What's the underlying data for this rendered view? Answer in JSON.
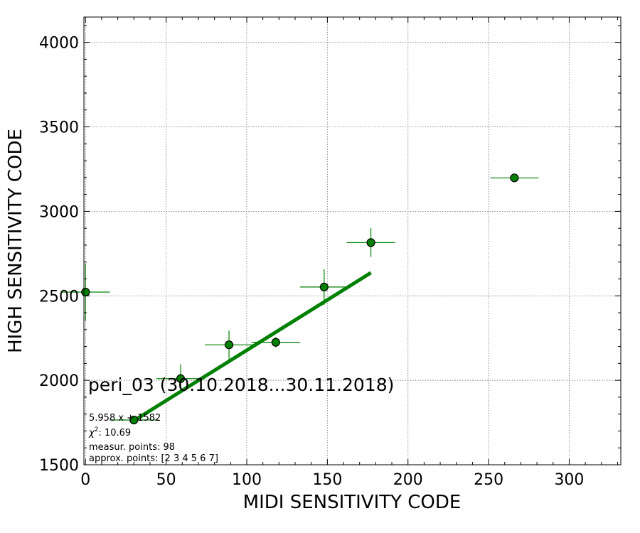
{
  "chart_data": {
    "type": "scatter",
    "xlabel": "MIDI SENSITIVITY CODE",
    "ylabel": "HIGH SENSITIVITY CODE",
    "xlim": [
      -1,
      332
    ],
    "ylim": [
      1500,
      4150
    ],
    "xticks": [
      0,
      50,
      100,
      150,
      200,
      250,
      300
    ],
    "yticks": [
      1500,
      2000,
      2500,
      3000,
      3500,
      4000
    ],
    "grid": true,
    "points": [
      {
        "x": 0,
        "y": 2522,
        "xerr": 15,
        "yerr": 170
      },
      {
        "x": 30,
        "y": 1765,
        "xerr": 15,
        "yerr": 15
      },
      {
        "x": 59,
        "y": 2010,
        "xerr": 15,
        "yerr": 85
      },
      {
        "x": 89,
        "y": 2210,
        "xerr": 15,
        "yerr": 85
      },
      {
        "x": 118,
        "y": 2225,
        "xerr": 15,
        "yerr": 30
      },
      {
        "x": 148,
        "y": 2552,
        "xerr": 15,
        "yerr": 105
      },
      {
        "x": 177,
        "y": 2815,
        "xerr": 15,
        "yerr": 85
      },
      {
        "x": 266,
        "y": 3198,
        "xerr": 15,
        "yerr": 0
      }
    ],
    "fit": {
      "slope": 5.958,
      "intercept": 1582,
      "x_start": 30,
      "x_end": 177
    },
    "colors": {
      "fit": "#008000",
      "marker_fill": "#008000",
      "marker_edge": "#000000",
      "errorbar": "#008000",
      "grid": "#808080"
    },
    "annotations": {
      "title": "peri_03 (30.10.2018...30.11.2018)",
      "equation": "5.958 x + 1582",
      "chi_symbol": "χ",
      "chi_sup": "2",
      "chi_rest": ": 10.69",
      "measur_points": "measur. points: 98",
      "approx_points": "approx. points: [2 3 4 5 6 7]"
    }
  }
}
